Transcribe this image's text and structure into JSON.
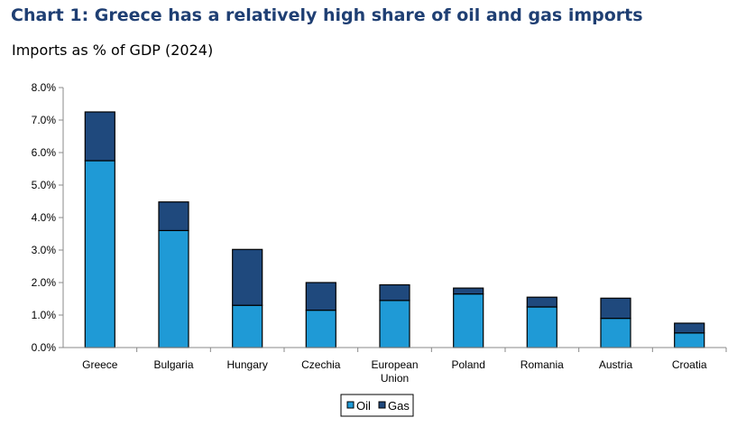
{
  "title": "Chart 1: Greece has a relatively high share of oil and gas imports",
  "subtitle": "Imports as % of GDP (2024)",
  "colors": {
    "oil": "#1f9ad6",
    "gas": "#1f497d",
    "outline": "#000000",
    "title": "#1f3f73"
  },
  "chart_data": {
    "type": "bar",
    "stacked": true,
    "categories": [
      "Greece",
      "Bulgaria",
      "Hungary",
      "Czechia",
      "European Union",
      "Poland",
      "Romania",
      "Austria",
      "Croatia"
    ],
    "category_lines": [
      [
        "Greece"
      ],
      [
        "Bulgaria"
      ],
      [
        "Hungary"
      ],
      [
        "Czechia"
      ],
      [
        "European",
        "Union"
      ],
      [
        "Poland"
      ],
      [
        "Romania"
      ],
      [
        "Austria"
      ],
      [
        "Croatia"
      ]
    ],
    "series": [
      {
        "name": "Oil",
        "values": [
          5.75,
          3.6,
          1.3,
          1.15,
          1.45,
          1.65,
          1.25,
          0.9,
          0.45
        ]
      },
      {
        "name": "Gas",
        "values": [
          1.5,
          0.88,
          1.72,
          0.85,
          0.48,
          0.18,
          0.3,
          0.62,
          0.3
        ]
      }
    ],
    "ylim": [
      0,
      8
    ],
    "yticks": [
      "0.0%",
      "1.0%",
      "2.0%",
      "3.0%",
      "4.0%",
      "5.0%",
      "6.0%",
      "7.0%",
      "8.0%"
    ],
    "grid": false,
    "legend_position": "bottom-center"
  }
}
